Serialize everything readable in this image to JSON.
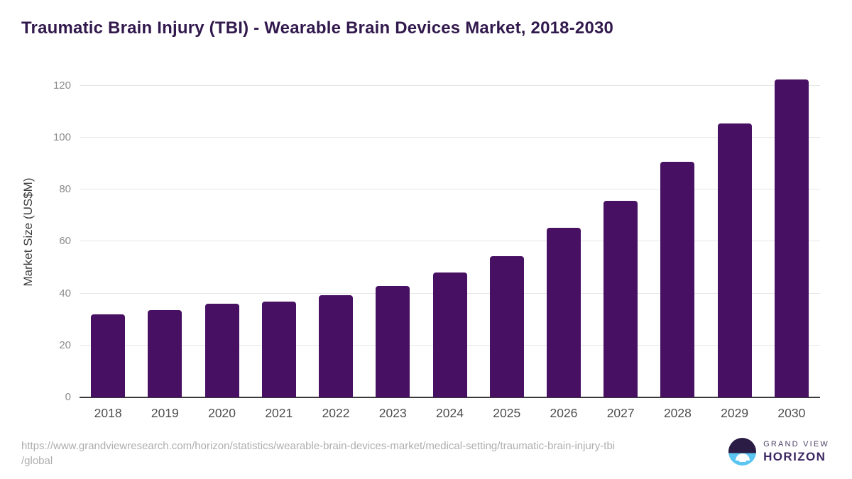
{
  "title": "Traumatic Brain Injury (TBI) - Wearable Brain Devices Market, 2018-2030",
  "chart_data": {
    "type": "bar",
    "categories": [
      "2018",
      "2019",
      "2020",
      "2021",
      "2022",
      "2023",
      "2024",
      "2025",
      "2026",
      "2027",
      "2028",
      "2029",
      "2030"
    ],
    "values": [
      32.0,
      33.7,
      36.2,
      37.0,
      39.3,
      42.8,
      48.0,
      54.5,
      65.2,
      75.8,
      90.6,
      105.4,
      122.4
    ],
    "title": "Traumatic Brain Injury (TBI) - Wearable Brain Devices Market, 2018-2030",
    "xlabel": "",
    "ylabel": "Market Size (US$M)",
    "ylim": [
      0,
      127
    ],
    "yticks": [
      0,
      20,
      40,
      60,
      80,
      100,
      120
    ],
    "grid": "horizontal",
    "legend": "none",
    "bar_color": "#481062"
  },
  "colors": {
    "bar": "#481062",
    "title_text": "#32194d",
    "axis_line": "#3a3a3a",
    "gridline": "#e7e7e7",
    "ytick_text": "#8c8c8c",
    "xtick_text": "#4d4d4d",
    "url_text": "#aeaeae",
    "logo_dark": "#2a1c44",
    "logo_blue": "#5ac5f1"
  },
  "footer": {
    "url_lines": [
      "https://www.grandviewresearch.com/horizon/statistics/wearable-brain-devices-market/medical-setting/traumatic-brain-injury-tbi",
      "/global"
    ],
    "brand_top": "GRAND VIEW",
    "brand_bottom": "HORIZON"
  }
}
